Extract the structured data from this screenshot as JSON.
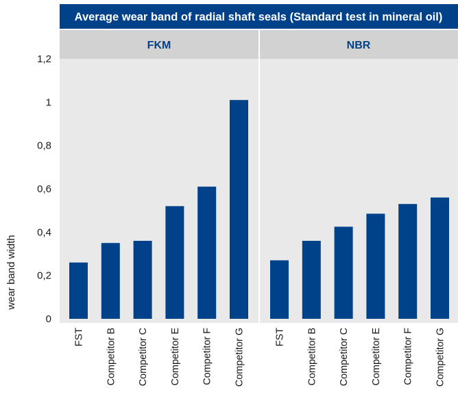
{
  "chart_data": {
    "type": "bar",
    "title": "Average wear band of radial shaft seals (Standard test in mineral oil)",
    "xlabel": "",
    "ylabel": "wear band width",
    "ylim": [
      0,
      1.2
    ],
    "yticks": [
      "0",
      "0,2",
      "0,4",
      "0,6",
      "0,8",
      "1",
      "1,2"
    ],
    "grid": false,
    "legend": "none",
    "panels": [
      {
        "name": "FKM",
        "categories": [
          "FST",
          "Competitor B",
          "Competitor C",
          "Competitor E",
          "Competitor F",
          "Competitor G"
        ],
        "values": [
          0.26,
          0.35,
          0.36,
          0.52,
          0.61,
          1.01
        ]
      },
      {
        "name": "NBR",
        "categories": [
          "FST",
          "Competitor B",
          "Competitor C",
          "Competitor E",
          "Competitor F",
          "Competitor G"
        ],
        "values": [
          0.27,
          0.36,
          0.425,
          0.485,
          0.53,
          0.56
        ]
      }
    ]
  },
  "colors": {
    "bar": "#00428a",
    "title_bg": "#00428a",
    "panel_header_bg": "#d2d2d2",
    "plot_bg": "#e9e9e9",
    "divider": "#ffffff"
  }
}
